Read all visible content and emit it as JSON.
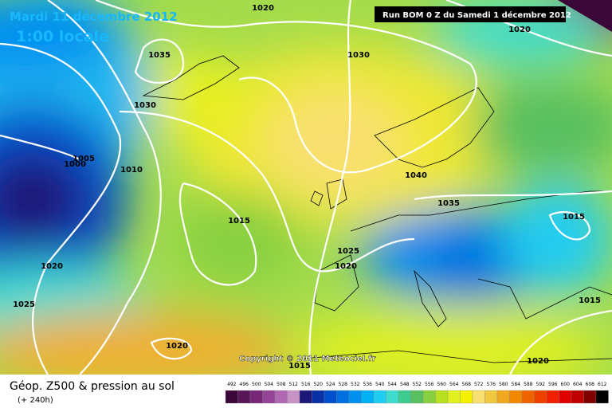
{
  "header": {
    "title": "Mardi 11 décembre 2012",
    "time": "1:00 locale",
    "run": "Run BOM 0 Z du Samedi 1 décembre 2012"
  },
  "map": {
    "copyright": "Copyright © 2011 Meteociel.fr",
    "isobar_labels": [
      "1020",
      "1020",
      "1035",
      "1030",
      "1030",
      "1005",
      "1000",
      "1010",
      "1015",
      "1020",
      "1025",
      "1040",
      "1035",
      "1015",
      "1025",
      "1020",
      "1015",
      "1020",
      "1015",
      "1020"
    ]
  },
  "footer": {
    "title": "Géop. Z500 & pression au sol",
    "subtitle": "(+ 240h)"
  },
  "legend": {
    "scale": [
      492,
      496,
      500,
      504,
      508,
      512,
      516,
      520,
      524,
      528,
      532,
      536,
      540,
      544,
      548,
      552,
      556,
      560,
      564,
      568,
      572,
      576,
      580,
      584,
      588,
      592,
      596,
      600,
      604,
      608,
      612
    ],
    "colors": [
      "#3a0838",
      "#581858",
      "#762876",
      "#944494",
      "#b068b0",
      "#c894c8",
      "#1c1878",
      "#0a30a8",
      "#0050cc",
      "#0070e0",
      "#0090f0",
      "#00b0f4",
      "#20ccf0",
      "#40dcd0",
      "#40cc90",
      "#58c060",
      "#88d040",
      "#b8e020",
      "#e0f020",
      "#f4f000",
      "#f8e070",
      "#f0c840",
      "#f0a820",
      "#f08800",
      "#f06400",
      "#f04000",
      "#f02000",
      "#e00000",
      "#c00000",
      "#800000",
      "#000000"
    ]
  }
}
